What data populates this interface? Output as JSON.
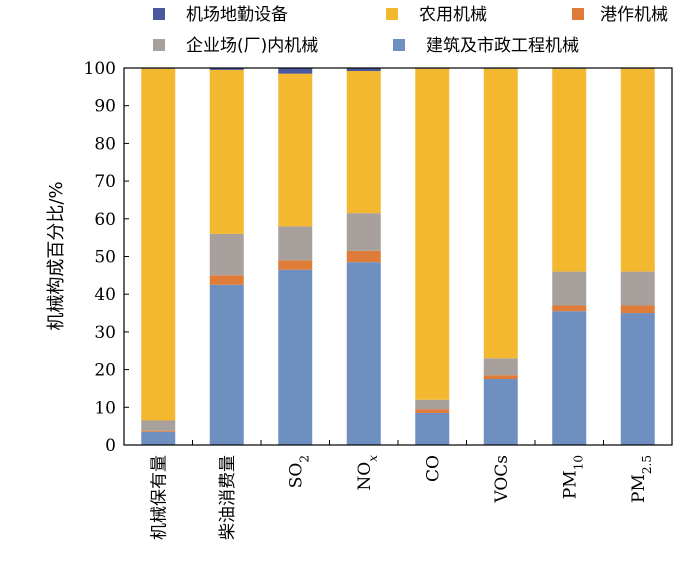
{
  "chart_data": {
    "type": "bar",
    "stacked": true,
    "ylabel": "机械构成百分比/%",
    "ylim": [
      0,
      100
    ],
    "yticks": [
      0,
      10,
      20,
      30,
      40,
      50,
      60,
      70,
      80,
      90,
      100
    ],
    "grid": false,
    "legend_position": "top",
    "categories": [
      {
        "label": "机械保有量"
      },
      {
        "label": "柴油消费量"
      },
      {
        "label": "SO",
        "sub": "2"
      },
      {
        "label": "NO",
        "sub": "x"
      },
      {
        "label": "CO"
      },
      {
        "label": "VOCs"
      },
      {
        "label": "PM",
        "sub": "10"
      },
      {
        "label": "PM",
        "sub": "2.5"
      }
    ],
    "series": [
      {
        "name": "建筑及市政工程机械",
        "color": "#6e8fc0",
        "values": [
          3.5,
          42.5,
          46.5,
          48.5,
          8.5,
          17.5,
          35.5,
          35.0
        ]
      },
      {
        "name": "港作机械",
        "color": "#e07c3a",
        "values": [
          0.3,
          2.5,
          2.5,
          3.0,
          1.0,
          1.0,
          1.5,
          2.0
        ]
      },
      {
        "name": "企业场(厂)内机械",
        "color": "#a8a09c",
        "values": [
          2.7,
          11.0,
          9.0,
          10.0,
          2.5,
          4.5,
          9.0,
          9.0
        ]
      },
      {
        "name": "农用机械",
        "color": "#f3b730",
        "values": [
          93.3,
          43.5,
          40.5,
          37.7,
          87.8,
          76.8,
          53.8,
          53.8
        ]
      },
      {
        "name": "机场地勤设备",
        "color": "#4a58a0",
        "values": [
          0.2,
          0.5,
          1.5,
          0.8,
          0.2,
          0.2,
          0.2,
          0.2
        ]
      }
    ],
    "legend_order": [
      [
        "机场地勤设备",
        "农用机械",
        "港作机械"
      ],
      [
        "企业场(厂)内机械",
        "建筑及市政工程机械"
      ]
    ]
  }
}
